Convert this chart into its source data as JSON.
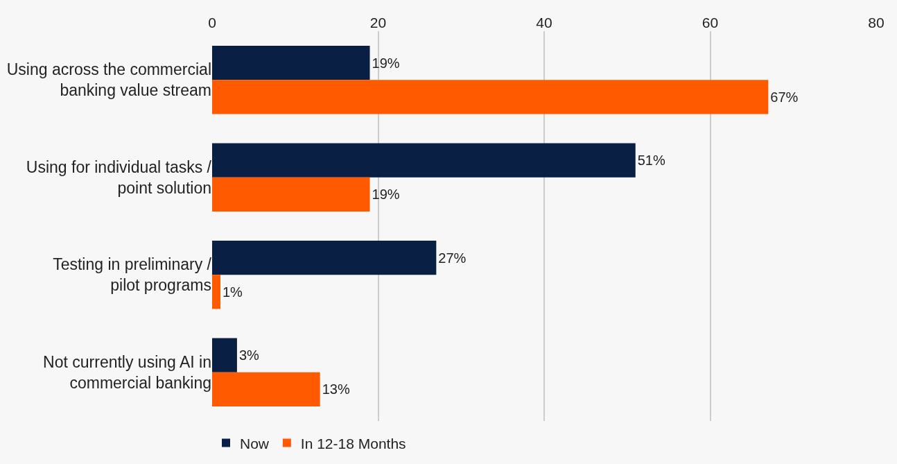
{
  "chart_data": {
    "type": "bar",
    "orientation": "horizontal",
    "categories": [
      "Using across the commercial banking value stream",
      "Using for individual tasks / point solution",
      "Testing in preliminary / pilot programs",
      "Not currently using AI in commercial banking"
    ],
    "series": [
      {
        "name": "Now",
        "color": "#0a1f44",
        "values": [
          19,
          51,
          27,
          3
        ],
        "value_labels": [
          "19%",
          "51%",
          "27%",
          "3%"
        ]
      },
      {
        "name": "In 12-18 Months",
        "color": "#ff5a00",
        "values": [
          67,
          19,
          1,
          13
        ],
        "value_labels": [
          "67%",
          "19%",
          "1%",
          "13%"
        ]
      }
    ],
    "xlim": [
      0,
      80
    ],
    "xticks": [
      0,
      20,
      40,
      60,
      80
    ],
    "grid": "x",
    "legend": "bottom left"
  }
}
